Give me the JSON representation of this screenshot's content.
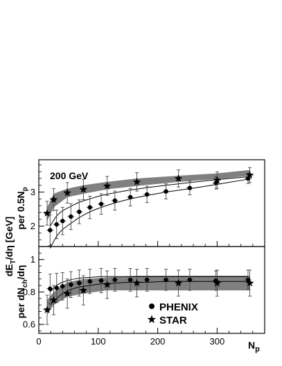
{
  "chart_data": [
    {
      "type": "scatter",
      "panel": "top",
      "ylabel_main": "per 0.5N",
      "ylabel_sub": "p",
      "annotation": "200 GeV",
      "xlim": [
        0,
        380
      ],
      "ylim": [
        1.4,
        3.95
      ],
      "yticks": [
        2,
        3
      ],
      "yticklabels": [
        "2",
        "3"
      ],
      "grid": false,
      "band": {
        "series": "STAR",
        "x": [
          14,
          25,
          48,
          75,
          115,
          165,
          235,
          300,
          355
        ],
        "lower": [
          2.15,
          2.55,
          2.85,
          2.95,
          3.08,
          3.18,
          3.3,
          3.38,
          3.48
        ],
        "upper": [
          2.55,
          2.95,
          3.1,
          3.2,
          3.3,
          3.4,
          3.48,
          3.55,
          3.65
        ]
      },
      "series": [
        {
          "name": "PHENIX",
          "marker": "circle",
          "x": [
            19,
            30,
            40,
            54,
            68,
            86,
            105,
            128,
            154,
            182,
            214,
            254,
            298,
            352
          ],
          "y": [
            1.88,
            2.05,
            2.15,
            2.28,
            2.42,
            2.55,
            2.65,
            2.75,
            2.85,
            2.93,
            3.02,
            3.12,
            3.27,
            3.4
          ],
          "yerr": [
            0.45,
            0.42,
            0.4,
            0.38,
            0.35,
            0.33,
            0.3,
            0.28,
            0.26,
            0.24,
            0.22,
            0.2,
            0.18,
            0.15
          ],
          "curve_upper": [
            2.0,
            2.3,
            2.45,
            2.58,
            2.7,
            2.8,
            2.9,
            2.98,
            3.06,
            3.13,
            3.2,
            3.28,
            3.36,
            3.45
          ],
          "curve_lower": [
            1.35,
            1.7,
            1.9,
            2.08,
            2.25,
            2.42,
            2.55,
            2.68,
            2.8,
            2.9,
            3.0,
            3.1,
            3.22,
            3.38
          ]
        },
        {
          "name": "STAR",
          "marker": "star",
          "x": [
            14,
            25,
            48,
            75,
            115,
            165,
            235,
            300,
            355
          ],
          "y": [
            2.38,
            2.78,
            2.98,
            3.08,
            3.18,
            3.3,
            3.4,
            3.35,
            3.5
          ],
          "yerr": [
            0.35,
            0.32,
            0.3,
            0.3,
            0.28,
            0.27,
            0.25,
            0.24,
            0.22
          ]
        }
      ]
    },
    {
      "type": "scatter",
      "panel": "bottom",
      "xlabel_main": "N",
      "xlabel_sub": "p",
      "ylabel_main": "per dN",
      "ylabel_sub": "ch",
      "ylabel_tail": "/dη",
      "xlim": [
        0,
        380
      ],
      "ylim": [
        0.545,
        1.08
      ],
      "yticks": [
        0.6,
        0.8,
        1
      ],
      "yticklabels": [
        "0.6",
        "0.8",
        "1"
      ],
      "xticks": [
        0,
        100,
        200,
        300
      ],
      "xticklabels": [
        "0",
        "100",
        "200",
        "300"
      ],
      "grid": false,
      "legend_position": "bottom-right",
      "band": {
        "series": "STAR",
        "x": [
          14,
          25,
          48,
          75,
          115,
          165,
          235,
          300,
          355
        ],
        "lower": [
          0.66,
          0.72,
          0.77,
          0.79,
          0.81,
          0.81,
          0.81,
          0.81,
          0.81
        ],
        "upper": [
          0.75,
          0.8,
          0.86,
          0.88,
          0.89,
          0.9,
          0.9,
          0.9,
          0.9
        ]
      },
      "series": [
        {
          "name": "PHENIX",
          "marker": "circle",
          "x": [
            19,
            30,
            40,
            54,
            68,
            86,
            105,
            128,
            154,
            182,
            214,
            254,
            298,
            352
          ],
          "y": [
            0.82,
            0.825,
            0.835,
            0.845,
            0.855,
            0.865,
            0.87,
            0.875,
            0.875,
            0.875,
            0.875,
            0.875,
            0.87,
            0.875
          ],
          "yerr": [
            0.09,
            0.09,
            0.085,
            0.08,
            0.08,
            0.075,
            0.075,
            0.07,
            0.07,
            0.07,
            0.065,
            0.065,
            0.06,
            0.06
          ],
          "curve_upper": [
            0.8,
            0.84,
            0.86,
            0.875,
            0.885,
            0.89,
            0.895,
            0.895,
            0.895,
            0.895,
            0.895,
            0.895,
            0.895,
            0.895
          ],
          "curve_lower": [
            0.72,
            0.76,
            0.79,
            0.815,
            0.83,
            0.84,
            0.85,
            0.855,
            0.86,
            0.86,
            0.865,
            0.865,
            0.865,
            0.865
          ]
        },
        {
          "name": "STAR",
          "marker": "star",
          "x": [
            14,
            25,
            48,
            75,
            115,
            165,
            235,
            300,
            355
          ],
          "y": [
            0.69,
            0.75,
            0.79,
            0.81,
            0.845,
            0.855,
            0.855,
            0.855,
            0.855
          ],
          "yerr": [
            0.09,
            0.09,
            0.09,
            0.09,
            0.085,
            0.085,
            0.08,
            0.08,
            0.08
          ]
        }
      ]
    }
  ],
  "shared_ylabel": {
    "main": "dE",
    "sub": "T",
    "tail": "/dη [GeV]"
  },
  "legend": {
    "phenix_label": "PHENIX",
    "star_label": "STAR"
  },
  "colors": {
    "band": "#808080",
    "ink": "#000000",
    "background": "#ffffff"
  }
}
